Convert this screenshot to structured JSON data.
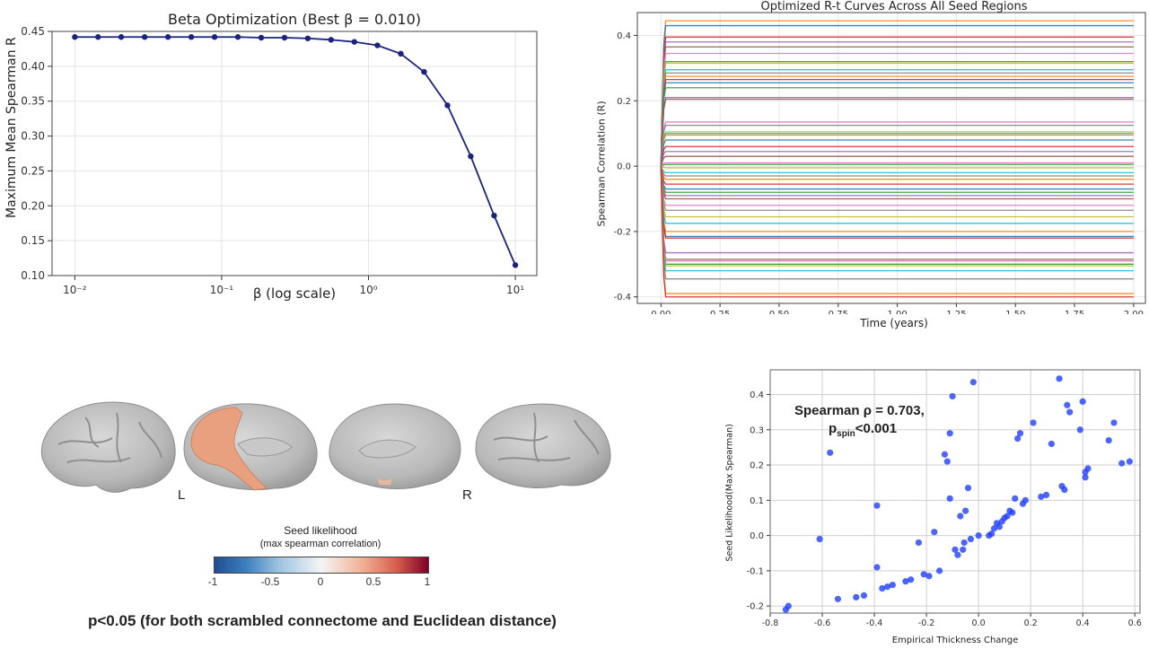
{
  "chart_data": [
    {
      "type": "line",
      "title": "Beta Optimization (Best β = 0.010)",
      "xlabel": "β (log scale)",
      "ylabel": "Maximum Mean Spearman R",
      "xscale": "log",
      "xlim": [
        0.007,
        14
      ],
      "ylim": [
        0.1,
        0.45
      ],
      "xticks": [
        "10⁻²",
        "10⁻¹",
        "10⁰",
        "10¹"
      ],
      "yticks": [
        "0.10",
        "0.15",
        "0.20",
        "0.25",
        "0.30",
        "0.35",
        "0.40",
        "0.45"
      ],
      "grid": true,
      "color": "#1a237e",
      "x": [
        0.01,
        0.0144,
        0.0207,
        0.0299,
        0.0431,
        0.0621,
        0.0895,
        0.129,
        0.186,
        0.268,
        0.386,
        0.556,
        0.801,
        1.15,
        1.66,
        2.39,
        3.45,
        4.97,
        7.17,
        10.0
      ],
      "y": [
        0.442,
        0.442,
        0.442,
        0.442,
        0.442,
        0.442,
        0.442,
        0.442,
        0.441,
        0.441,
        0.44,
        0.438,
        0.435,
        0.43,
        0.418,
        0.392,
        0.344,
        0.271,
        0.186,
        0.115
      ]
    },
    {
      "type": "line",
      "title": "Optimized R-t Curves Across All Seed Regions",
      "xlabel": "Time (years)",
      "ylabel": "Spearman Correlation (R)",
      "xlim": [
        -0.1,
        2.05
      ],
      "ylim": [
        -0.42,
        0.47
      ],
      "xticks": [
        "0.00",
        "0.25",
        "0.50",
        "0.75",
        "1.00",
        "1.25",
        "1.50",
        "1.75",
        "2.00"
      ],
      "yticks": [
        "-0.4",
        "-0.2",
        "0.0",
        "0.2",
        "0.4"
      ],
      "grid": true,
      "series_levels": [
        0.445,
        0.43,
        0.395,
        0.38,
        0.365,
        0.345,
        0.32,
        0.315,
        0.295,
        0.285,
        0.275,
        0.265,
        0.255,
        0.24,
        0.21,
        0.205,
        0.135,
        0.125,
        0.105,
        0.1,
        0.095,
        0.08,
        0.06,
        0.045,
        0.03,
        0.01,
        0.005,
        -0.005,
        -0.02,
        -0.03,
        -0.04,
        -0.055,
        -0.07,
        -0.08,
        -0.09,
        -0.1,
        -0.12,
        -0.135,
        -0.155,
        -0.175,
        -0.2,
        -0.215,
        -0.22,
        -0.265,
        -0.285,
        -0.29,
        -0.3,
        -0.305,
        -0.32,
        -0.345,
        -0.39,
        -0.4
      ],
      "series_colors": [
        "#ff7f0e",
        "#1f77b4",
        "#d62728",
        "#9467bd",
        "#8c564b",
        "#e377c2",
        "#2ca02c",
        "#bcbd22",
        "#17becf",
        "#7f7f7f",
        "#ff7f0e",
        "#d62728",
        "#1f77b4",
        "#2ca02c",
        "#9467bd",
        "#8c564b",
        "#e377c2",
        "#7f7f7f",
        "#bcbd22",
        "#17becf"
      ]
    },
    {
      "type": "scatter",
      "xlabel": "Empirical Thickness Change",
      "ylabel": "Seed Likelihood(Max Spearman)",
      "xlim": [
        -0.8,
        0.62
      ],
      "ylim": [
        -0.22,
        0.47
      ],
      "xticks": [
        "-0.8",
        "-0.6",
        "-0.4",
        "-0.2",
        "0.0",
        "0.2",
        "0.4",
        "0.6"
      ],
      "yticks": [
        "-0.2",
        "-0.1",
        "0.0",
        "0.1",
        "0.2",
        "0.3",
        "0.4"
      ],
      "grid": true,
      "color": "#1f3fff",
      "annotation_line1": "Spearman ρ = 0.703,",
      "annotation_p": "p",
      "annotation_sub": "spin",
      "annotation_rest": "<0.001",
      "points": [
        [
          -0.74,
          -0.21
        ],
        [
          -0.73,
          -0.2
        ],
        [
          -0.57,
          0.235
        ],
        [
          -0.61,
          -0.01
        ],
        [
          -0.54,
          -0.18
        ],
        [
          -0.47,
          -0.175
        ],
        [
          -0.44,
          -0.17
        ],
        [
          -0.39,
          0.085
        ],
        [
          -0.39,
          -0.09
        ],
        [
          -0.37,
          -0.15
        ],
        [
          -0.35,
          -0.145
        ],
        [
          -0.33,
          -0.14
        ],
        [
          -0.28,
          -0.13
        ],
        [
          -0.26,
          -0.125
        ],
        [
          -0.23,
          -0.02
        ],
        [
          -0.21,
          -0.11
        ],
        [
          -0.19,
          -0.115
        ],
        [
          -0.17,
          0.01
        ],
        [
          -0.15,
          -0.1
        ],
        [
          -0.13,
          0.23
        ],
        [
          -0.12,
          0.21
        ],
        [
          -0.11,
          0.105
        ],
        [
          -0.11,
          0.29
        ],
        [
          -0.1,
          0.395
        ],
        [
          -0.09,
          -0.04
        ],
        [
          -0.08,
          -0.055
        ],
        [
          -0.07,
          0.055
        ],
        [
          -0.06,
          -0.04
        ],
        [
          -0.055,
          -0.02
        ],
        [
          -0.05,
          0.07
        ],
        [
          -0.04,
          0.135
        ],
        [
          -0.03,
          -0.01
        ],
        [
          -0.02,
          0.435
        ],
        [
          0.0,
          0.0
        ],
        [
          0.04,
          0.0
        ],
        [
          0.05,
          0.005
        ],
        [
          0.06,
          0.02
        ],
        [
          0.07,
          0.035
        ],
        [
          0.08,
          0.025
        ],
        [
          0.09,
          0.04
        ],
        [
          0.1,
          0.05
        ],
        [
          0.11,
          0.055
        ],
        [
          0.12,
          0.07
        ],
        [
          0.13,
          0.065
        ],
        [
          0.14,
          0.105
        ],
        [
          0.15,
          0.275
        ],
        [
          0.16,
          0.29
        ],
        [
          0.17,
          0.09
        ],
        [
          0.18,
          0.1
        ],
        [
          0.21,
          0.32
        ],
        [
          0.24,
          0.11
        ],
        [
          0.26,
          0.115
        ],
        [
          0.28,
          0.26
        ],
        [
          0.31,
          0.445
        ],
        [
          0.32,
          0.14
        ],
        [
          0.33,
          0.13
        ],
        [
          0.34,
          0.37
        ],
        [
          0.35,
          0.35
        ],
        [
          0.39,
          0.3
        ],
        [
          0.4,
          0.38
        ],
        [
          0.41,
          0.165
        ],
        [
          0.41,
          0.18
        ],
        [
          0.42,
          0.19
        ],
        [
          0.5,
          0.27
        ],
        [
          0.52,
          0.32
        ],
        [
          0.55,
          0.205
        ],
        [
          0.58,
          0.21
        ]
      ]
    }
  ],
  "brain": {
    "label_left": "L",
    "label_right": "R",
    "colorbar_title": "Seed likelihood",
    "colorbar_subtitle": "(max spearman correlation)",
    "colorbar_ticks": [
      "-1",
      "-0.5",
      "0",
      "0.5",
      "1"
    ],
    "highlight_color": "#e8a07e",
    "caption": "p<0.05 (for both scrambled connectome and Euclidean distance)"
  }
}
